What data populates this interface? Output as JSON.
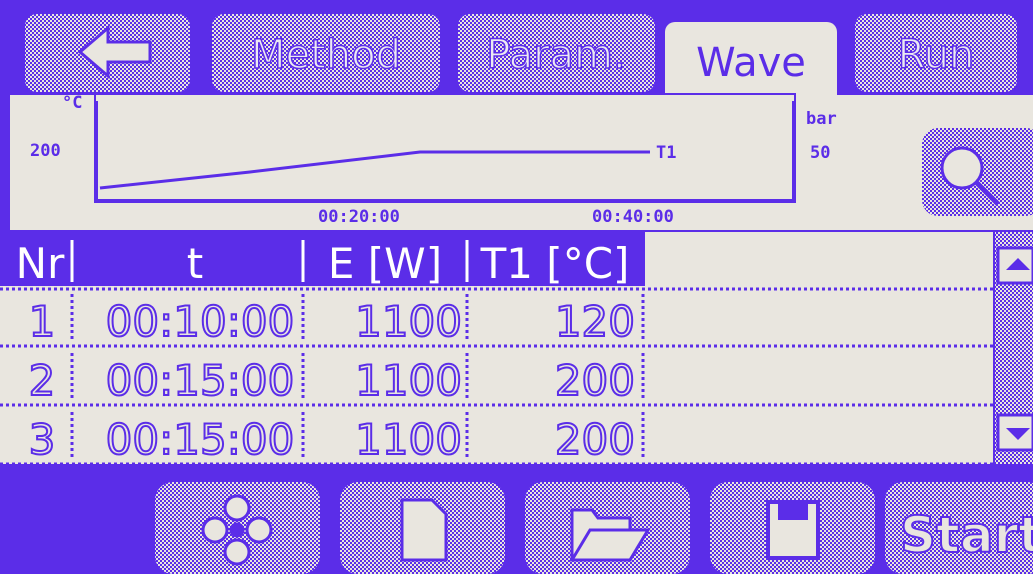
{
  "tabs": [
    "Method",
    "Param.",
    "Wave",
    "Run"
  ],
  "wave_preview": {
    "y_unit": "°C",
    "y_value": 200,
    "y2_unit": "bar",
    "y2_value": 50,
    "series_label": "T1",
    "x_labels": [
      "00:20:00",
      "00:40:00"
    ]
  },
  "table": {
    "columns": [
      "Nr",
      "t",
      "E [W]",
      "T1 [°C]"
    ],
    "rows": [
      [
        1,
        "00:10:00",
        1100,
        120
      ],
      [
        2,
        "00:15:00",
        1100,
        200
      ],
      [
        3,
        "00:15:00",
        1100,
        200
      ]
    ]
  },
  "buttons": {
    "start": "Start"
  }
}
